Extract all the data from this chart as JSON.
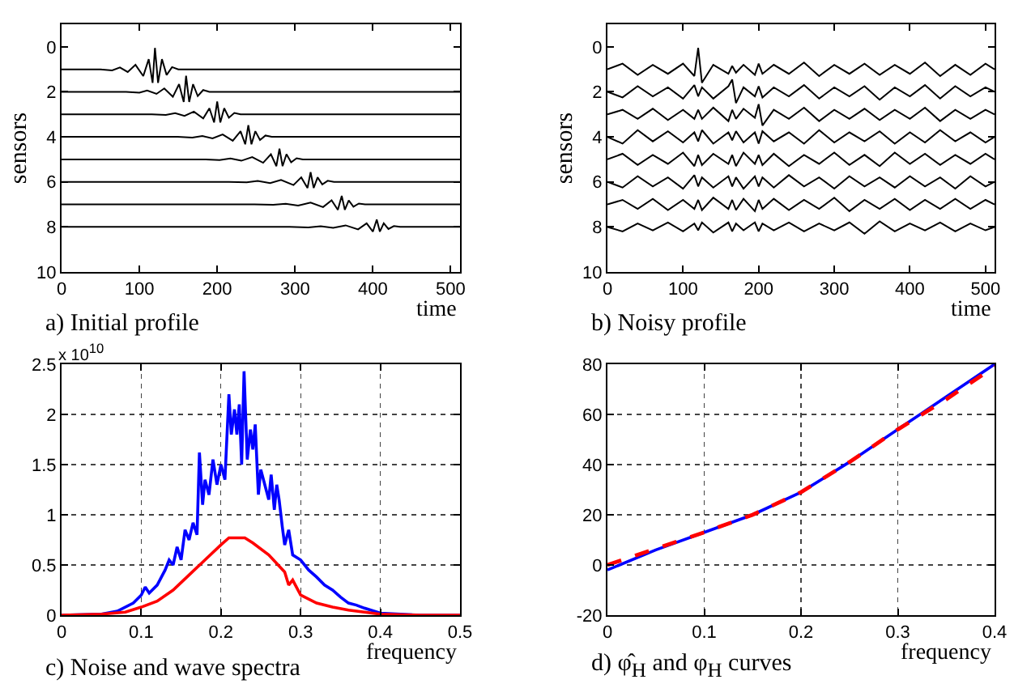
{
  "chart_data": [
    {
      "type": "line",
      "title": "a) Initial profile",
      "xlabel": "time",
      "ylabel": "sensors",
      "xlim": [
        0,
        512
      ],
      "xticks": [
        0,
        100,
        200,
        300,
        400,
        500
      ],
      "ylim": [
        10,
        -1
      ],
      "yticks": [
        0,
        2,
        4,
        6,
        8,
        10
      ],
      "series": [
        {
          "color": "#000000",
          "x": [
            0,
            50,
            65,
            75,
            85,
            95,
            105,
            112,
            117,
            120,
            124,
            129,
            135,
            142,
            150,
            512
          ],
          "values": [
            1,
            1,
            1.05,
            0.92,
            1.12,
            0.8,
            1.3,
            0.55,
            1.6,
            0.05,
            1.6,
            0.55,
            1.25,
            0.9,
            1,
            1
          ]
        },
        {
          "color": "#000000",
          "x": [
            0,
            83,
            100,
            110,
            122,
            132,
            143,
            151,
            157,
            160,
            164,
            169,
            175,
            182,
            190,
            512
          ],
          "values": [
            2,
            2,
            2.04,
            1.94,
            2.09,
            1.85,
            2.22,
            1.66,
            2.45,
            1.29,
            2.45,
            1.66,
            2.19,
            1.92,
            2,
            2
          ]
        },
        {
          "color": "#000000",
          "x": [
            0,
            116,
            134,
            146,
            158,
            170,
            182,
            190,
            196,
            200,
            204,
            209,
            215,
            222,
            230,
            512
          ],
          "values": [
            3,
            3,
            3.03,
            2.95,
            3.07,
            2.88,
            3.18,
            2.73,
            3.36,
            2.43,
            3.36,
            2.73,
            3.15,
            2.94,
            3,
            3
          ]
        },
        {
          "color": "#000000",
          "x": [
            0,
            149,
            168,
            181,
            194,
            207,
            220,
            230,
            236,
            240,
            244,
            249,
            255,
            262,
            270,
            512
          ],
          "values": [
            4,
            4,
            4.03,
            3.96,
            4.07,
            3.89,
            4.17,
            3.75,
            4.33,
            3.48,
            4.33,
            3.75,
            4.14,
            3.94,
            4,
            4
          ]
        },
        {
          "color": "#000000",
          "x": [
            0,
            182,
            203,
            217,
            231,
            245,
            259,
            269,
            276,
            280,
            284,
            289,
            295,
            302,
            310,
            512
          ],
          "values": [
            5,
            5,
            5.03,
            4.96,
            5.06,
            4.9,
            5.15,
            4.77,
            5.3,
            4.52,
            5.3,
            4.77,
            5.13,
            4.95,
            5,
            5
          ]
        },
        {
          "color": "#000000",
          "x": [
            0,
            215,
            238,
            252,
            268,
            282,
            298,
            308,
            316,
            320,
            324,
            329,
            335,
            342,
            350,
            512
          ],
          "values": [
            6,
            6,
            6.02,
            5.96,
            6.05,
            5.91,
            6.14,
            5.8,
            6.27,
            5.57,
            6.27,
            5.8,
            6.11,
            5.95,
            6,
            6
          ]
        },
        {
          "color": "#000000",
          "x": [
            0,
            248,
            272,
            288,
            304,
            320,
            336,
            347,
            355,
            360,
            364,
            369,
            375,
            382,
            390,
            512
          ],
          "values": [
            7,
            7,
            7.02,
            6.97,
            7.05,
            6.92,
            7.12,
            6.82,
            7.24,
            6.62,
            7.24,
            6.82,
            7.1,
            6.96,
            7,
            7
          ]
        },
        {
          "color": "#000000",
          "x": [
            0,
            293,
            317,
            333,
            349,
            365,
            381,
            392,
            400,
            405,
            409,
            414,
            420,
            427,
            435,
            512
          ],
          "values": [
            8,
            8,
            8.02,
            7.97,
            8.04,
            7.93,
            8.11,
            7.84,
            8.21,
            7.67,
            8.21,
            7.84,
            8.09,
            7.96,
            8,
            8
          ]
        }
      ]
    },
    {
      "type": "line",
      "title": "b) Noisy profile",
      "xlabel": "time",
      "ylabel": "sensors",
      "xlim": [
        0,
        512
      ],
      "xticks": [
        0,
        100,
        200,
        300,
        400,
        500
      ],
      "ylim": [
        10,
        -1
      ],
      "yticks": [
        0,
        2,
        4,
        6,
        8,
        10
      ],
      "x": [
        0,
        20,
        40,
        60,
        80,
        100,
        115,
        120,
        125,
        140,
        160,
        165,
        170,
        180,
        195,
        200,
        205,
        220,
        240,
        260,
        280,
        300,
        320,
        340,
        360,
        380,
        400,
        420,
        440,
        460,
        480,
        500,
        512
      ],
      "series": [
        {
          "color": "#000000",
          "values": [
            1,
            0.75,
            1.25,
            0.8,
            1.2,
            0.75,
            1.3,
            0.05,
            1.6,
            0.8,
            1.2,
            0.85,
            1.15,
            0.8,
            1.25,
            0.75,
            1.2,
            0.8,
            1.2,
            0.7,
            1.3,
            0.8,
            1.2,
            0.75,
            1.25,
            0.8,
            1.2,
            0.7,
            1.3,
            0.8,
            1.25,
            0.75,
            1
          ]
        },
        {
          "color": "#000000",
          "values": [
            2,
            2.25,
            1.75,
            2.2,
            1.8,
            2.3,
            1.7,
            2.2,
            1.8,
            2.3,
            1.75,
            1.45,
            2.5,
            1.8,
            2.2,
            1.75,
            2.25,
            1.8,
            2.2,
            1.7,
            2.3,
            1.8,
            2.2,
            1.75,
            2.35,
            1.8,
            2.2,
            1.7,
            2.3,
            1.75,
            2.2,
            1.8,
            2
          ]
        },
        {
          "color": "#000000",
          "values": [
            3,
            2.8,
            3.2,
            2.75,
            3.25,
            2.8,
            3.2,
            2.8,
            3.2,
            2.7,
            3.3,
            2.8,
            3.2,
            2.75,
            3.15,
            2.55,
            3.5,
            2.8,
            3.2,
            2.7,
            3.3,
            2.8,
            3.2,
            2.75,
            3.25,
            2.8,
            3.2,
            2.7,
            3.3,
            2.8,
            3.2,
            2.8,
            3
          ]
        },
        {
          "color": "#000000",
          "values": [
            4,
            4.3,
            3.7,
            4.2,
            3.75,
            4.25,
            3.8,
            4.2,
            3.7,
            4.3,
            3.8,
            4.15,
            3.75,
            4.25,
            3.8,
            4.3,
            3.75,
            4.2,
            3.8,
            4.3,
            3.7,
            4.25,
            3.8,
            4.2,
            3.75,
            4.3,
            3.8,
            4.25,
            3.7,
            4.2,
            3.8,
            4.25,
            4
          ]
        },
        {
          "color": "#000000",
          "values": [
            5,
            4.75,
            5.25,
            4.8,
            5.2,
            4.7,
            5.3,
            4.8,
            5.25,
            4.75,
            5.2,
            4.8,
            5.3,
            4.7,
            5.2,
            4.8,
            5.25,
            4.75,
            5.3,
            4.8,
            5.2,
            4.7,
            5.25,
            4.8,
            5.3,
            4.7,
            5.2,
            4.75,
            5.25,
            4.8,
            5.2,
            4.75,
            5
          ]
        },
        {
          "color": "#000000",
          "values": [
            6,
            6.25,
            5.75,
            6.2,
            5.8,
            6.3,
            5.7,
            6.2,
            5.8,
            6.25,
            5.75,
            6.2,
            5.8,
            6.3,
            5.75,
            6.2,
            5.8,
            6.25,
            5.7,
            6.2,
            5.8,
            6.3,
            5.75,
            6.2,
            5.8,
            6.25,
            5.75,
            6.2,
            5.8,
            6.3,
            5.75,
            6.2,
            6
          ]
        },
        {
          "color": "#000000",
          "values": [
            7,
            6.8,
            7.2,
            6.75,
            7.25,
            6.8,
            7.2,
            6.8,
            7.25,
            6.7,
            7.2,
            6.8,
            7.25,
            6.75,
            7.3,
            6.8,
            7.2,
            6.75,
            7.25,
            6.8,
            7.2,
            6.7,
            7.3,
            6.8,
            7.2,
            6.75,
            7.25,
            6.8,
            7.2,
            6.75,
            7.2,
            6.8,
            7
          ]
        },
        {
          "color": "#000000",
          "values": [
            8,
            8.2,
            7.85,
            8.15,
            7.8,
            8.2,
            7.85,
            8.15,
            7.8,
            8.25,
            7.8,
            8.2,
            7.85,
            8.15,
            7.8,
            8.2,
            7.85,
            8.15,
            7.8,
            8.2,
            7.85,
            8.15,
            7.8,
            8.3,
            7.75,
            8.2,
            7.85,
            8.15,
            7.8,
            8.2,
            7.85,
            8.15,
            8
          ]
        }
      ]
    },
    {
      "type": "line",
      "title": "c) Noise and wave spectra",
      "xlabel": "frequency",
      "annotations": [
        "x 10$^{10}$"
      ],
      "xlim": [
        0,
        0.5
      ],
      "xticks": [
        0,
        0.1,
        0.2,
        0.3,
        0.4,
        0.5
      ],
      "ylim": [
        0,
        2.5
      ],
      "yticks": [
        0,
        0.5,
        1,
        1.5,
        2,
        2.5
      ],
      "grid": true,
      "series": [
        {
          "color": "#0000ff",
          "x": [
            0,
            0.05,
            0.07,
            0.09,
            0.1,
            0.105,
            0.11,
            0.12,
            0.13,
            0.135,
            0.14,
            0.145,
            0.15,
            0.155,
            0.16,
            0.165,
            0.17,
            0.173,
            0.177,
            0.18,
            0.185,
            0.19,
            0.195,
            0.2,
            0.205,
            0.21,
            0.213,
            0.217,
            0.22,
            0.223,
            0.226,
            0.229,
            0.233,
            0.237,
            0.24,
            0.243,
            0.247,
            0.25,
            0.255,
            0.26,
            0.263,
            0.267,
            0.27,
            0.273,
            0.277,
            0.28,
            0.285,
            0.29,
            0.3,
            0.31,
            0.32,
            0.33,
            0.34,
            0.35,
            0.36,
            0.37,
            0.38,
            0.4,
            0.45,
            0.5
          ],
          "values": [
            0,
            0.01,
            0.04,
            0.12,
            0.2,
            0.28,
            0.22,
            0.3,
            0.45,
            0.55,
            0.5,
            0.68,
            0.55,
            0.85,
            0.75,
            0.92,
            0.8,
            1.62,
            1.1,
            1.35,
            1.2,
            1.55,
            1.3,
            1.5,
            1.35,
            2.2,
            1.8,
            2.05,
            1.8,
            2.1,
            1.5,
            2.43,
            1.55,
            1.85,
            1.65,
            1.9,
            1.2,
            1.45,
            1.3,
            1.15,
            1.4,
            1.05,
            1.3,
            1.15,
            0.88,
            0.7,
            0.85,
            0.6,
            0.55,
            0.45,
            0.38,
            0.3,
            0.25,
            0.18,
            0.12,
            0.1,
            0.07,
            0.02,
            0,
            0
          ]
        },
        {
          "color": "#ff0000",
          "x": [
            0,
            0.05,
            0.08,
            0.1,
            0.12,
            0.14,
            0.16,
            0.18,
            0.2,
            0.21,
            0.23,
            0.24,
            0.26,
            0.28,
            0.285,
            0.29,
            0.3,
            0.32,
            0.34,
            0.36,
            0.38,
            0.4,
            0.45,
            0.5
          ],
          "values": [
            0,
            0.01,
            0.03,
            0.08,
            0.14,
            0.25,
            0.4,
            0.55,
            0.7,
            0.77,
            0.77,
            0.72,
            0.6,
            0.43,
            0.3,
            0.35,
            0.2,
            0.12,
            0.08,
            0.05,
            0.03,
            0.01,
            0,
            0
          ]
        }
      ]
    },
    {
      "type": "line",
      "title": "d) φ̂$_{H}$ and φ$_{H}$ curves",
      "xlabel": "frequency",
      "xlim": [
        0,
        0.4
      ],
      "xticks": [
        0,
        0.1,
        0.2,
        0.3,
        0.4
      ],
      "ylim": [
        -20,
        80
      ],
      "yticks": [
        -20,
        0,
        20,
        40,
        60,
        80
      ],
      "grid": true,
      "x": [
        0,
        0.05,
        0.1,
        0.15,
        0.2,
        0.25,
        0.3,
        0.35,
        0.4
      ],
      "series": [
        {
          "color": "#0000ff",
          "line_style": "solid",
          "values": [
            -2,
            6,
            13,
            20,
            29,
            41,
            54,
            67,
            80
          ]
        },
        {
          "color": "#ff0000",
          "line_style": "dashed",
          "values": [
            0,
            6.5,
            13,
            20,
            29,
            41,
            54,
            66,
            79
          ]
        }
      ]
    }
  ]
}
